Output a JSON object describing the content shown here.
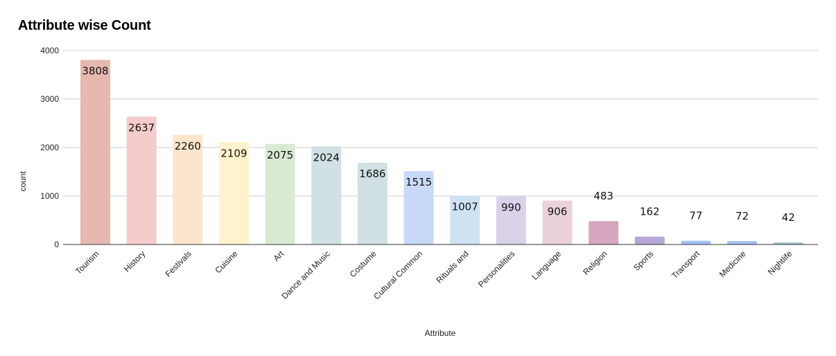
{
  "chart_data": {
    "type": "bar",
    "title": "Attribute wise Count",
    "xlabel": "Attribute",
    "ylabel": "count",
    "ylim": [
      0,
      4000
    ],
    "yticks": [
      0,
      1000,
      2000,
      3000,
      4000
    ],
    "grid": true,
    "categories": [
      "Tourism",
      "History",
      "Festivals",
      "Cuisine",
      "Art",
      "Dance and Music",
      "Costume",
      "Cultural Common",
      "Rituals and",
      "Personalities",
      "Language",
      "Religion",
      "Sports",
      "Transport",
      "Medicine",
      "Nightlife"
    ],
    "values": [
      3808,
      2637,
      2260,
      2109,
      2075,
      2024,
      1686,
      1515,
      1007,
      990,
      906,
      483,
      162,
      77,
      72,
      42
    ],
    "colors": [
      "#e6b8af",
      "#f4cccc",
      "#fce5cd",
      "#fff2cc",
      "#d9ead3",
      "#d0e0e3",
      "#d0e0e3",
      "#c9daf8",
      "#cfe2f3",
      "#d9d2e9",
      "#ead1dc",
      "#d5a6bd",
      "#b4a7d6",
      "#a4c2f4",
      "#a4c2f4",
      "#a2c4c9"
    ]
  }
}
